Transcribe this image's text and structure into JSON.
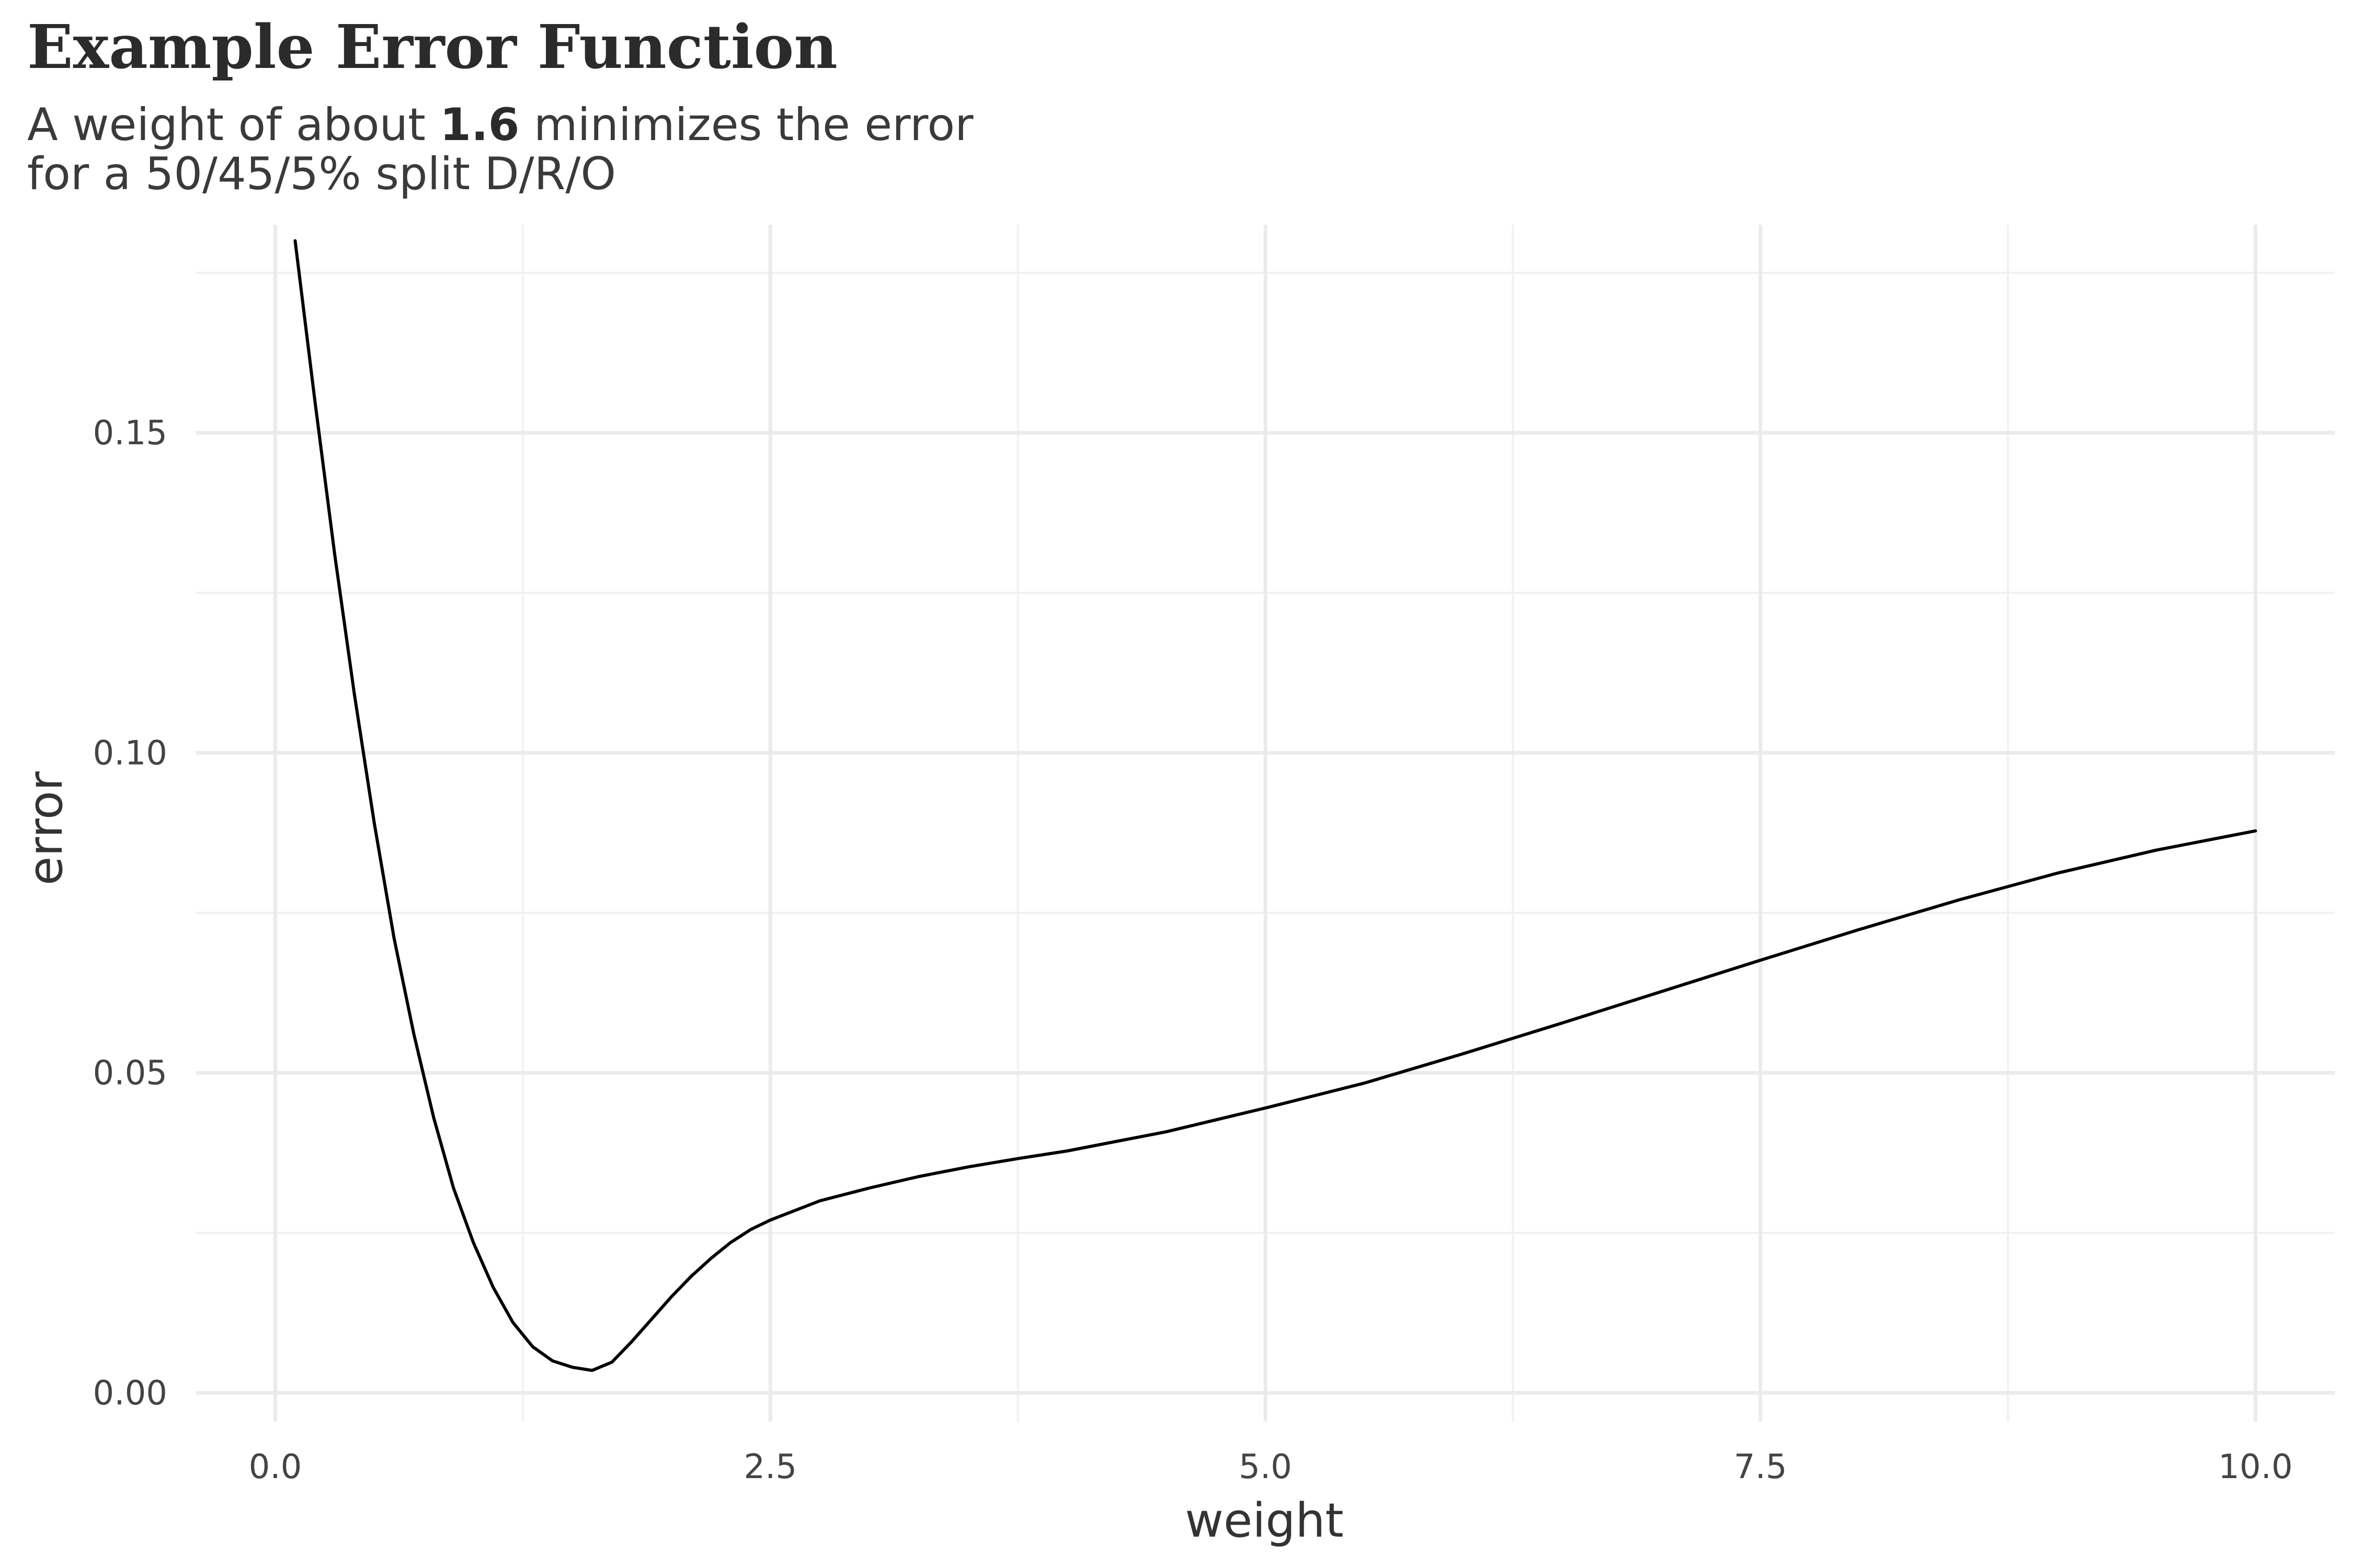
{
  "chart_data": {
    "type": "line",
    "title": "Example Error Function",
    "subtitle": {
      "line1_pre": "A weight of about ",
      "line1_emph": "1.6",
      "line1_post": " minimizes the error",
      "line2": "for a 50/45/5% split D/R/O"
    },
    "xlabel": "weight",
    "ylabel": "error",
    "xlim": [
      -0.4,
      10.4
    ],
    "ylim": [
      -0.0045,
      0.1825
    ],
    "x_ticks": [
      0.0,
      2.5,
      5.0,
      7.5,
      10.0
    ],
    "x_tick_labels": [
      "0.0",
      "2.5",
      "5.0",
      "7.5",
      "10.0"
    ],
    "y_ticks": [
      0.0,
      0.05,
      0.1,
      0.15
    ],
    "y_tick_labels": [
      "0.00",
      "0.05",
      "0.10",
      "0.15"
    ],
    "x_minor": [
      1.25,
      3.75,
      6.25,
      8.75
    ],
    "y_minor": [
      0.025,
      0.075,
      0.125,
      0.175
    ],
    "grid": true,
    "series": [
      {
        "color": "#000000",
        "x": [
          0.1,
          0.2,
          0.3,
          0.4,
          0.5,
          0.6,
          0.7,
          0.8,
          0.9,
          1.0,
          1.1,
          1.2,
          1.3,
          1.4,
          1.5,
          1.6,
          1.7,
          1.8,
          1.9,
          2.0,
          2.1,
          2.2,
          2.3,
          2.4,
          2.5,
          2.75,
          3.0,
          3.25,
          3.5,
          3.75,
          4.0,
          4.5,
          5.0,
          5.5,
          6.0,
          6.5,
          7.0,
          7.5,
          8.0,
          8.5,
          9.0,
          9.5,
          10.0
        ],
        "y": [
          0.18,
          0.155,
          0.131,
          0.109,
          0.089,
          0.071,
          0.056,
          0.043,
          0.032,
          0.0235,
          0.0165,
          0.011,
          0.0072,
          0.005,
          0.004,
          0.0035,
          0.0048,
          0.008,
          0.0115,
          0.015,
          0.0182,
          0.021,
          0.0235,
          0.0255,
          0.027,
          0.03,
          0.032,
          0.0338,
          0.0353,
          0.0366,
          0.0378,
          0.0408,
          0.0445,
          0.0484,
          0.053,
          0.0578,
          0.0627,
          0.0676,
          0.0724,
          0.077,
          0.0812,
          0.0848,
          0.0878
        ]
      }
    ]
  }
}
